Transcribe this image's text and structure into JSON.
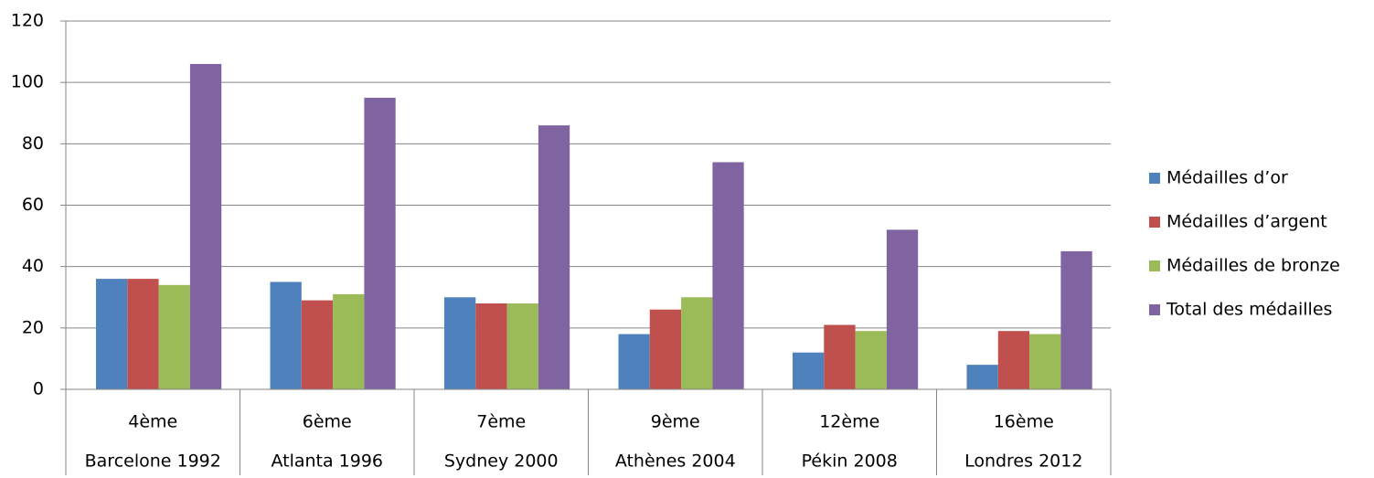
{
  "chart_data": {
    "type": "bar",
    "categories": [
      "Barcelone 1992",
      "Atlanta 1996",
      "Sydney 2000",
      "Athènes 2004",
      "Pékin 2008",
      "Londres 2012"
    ],
    "category_ranks": [
      "4ème",
      "6ème",
      "7ème",
      "9ème",
      "12ème",
      "16ème"
    ],
    "series": [
      {
        "name": "Médailles d’or",
        "color": "#4f81bd",
        "values": [
          36,
          35,
          30,
          18,
          12,
          8
        ]
      },
      {
        "name": "Médailles d’argent",
        "color": "#c0504d",
        "values": [
          36,
          29,
          28,
          26,
          21,
          19
        ]
      },
      {
        "name": "Médailles de bronze",
        "color": "#9bbb59",
        "values": [
          34,
          31,
          28,
          30,
          19,
          18
        ]
      },
      {
        "name": "Total des médailles",
        "color": "#8064a2",
        "values": [
          106,
          95,
          86,
          74,
          52,
          45
        ]
      }
    ],
    "ylim": [
      0,
      120
    ],
    "yticks": [
      0,
      20,
      40,
      60,
      80,
      100,
      120
    ],
    "grid": true,
    "legend": "right"
  }
}
